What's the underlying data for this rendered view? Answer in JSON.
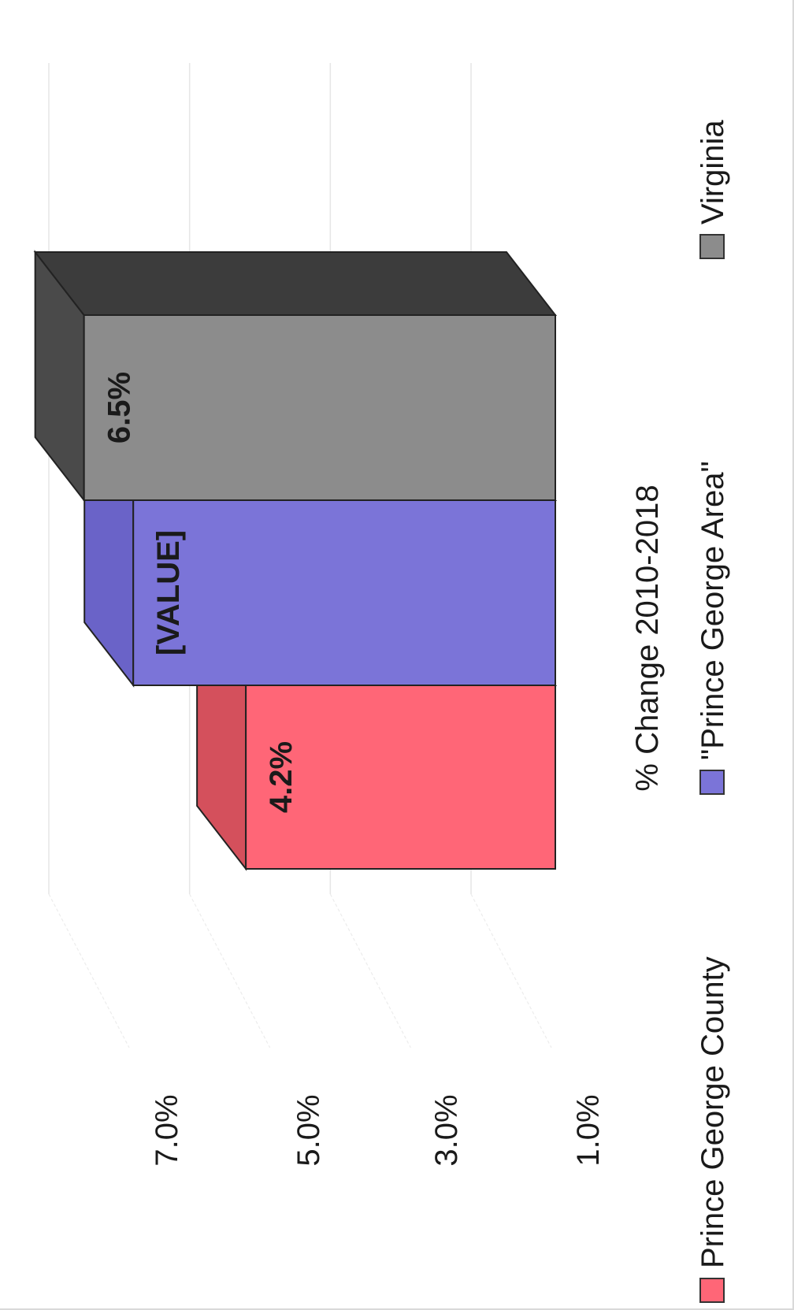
{
  "chart_data": {
    "type": "bar",
    "orientation": "rotated-90-clockwise",
    "style": "3d-column",
    "title": "% Change 2010-2018",
    "categories": [
      "% Change 2010-2018"
    ],
    "series": [
      {
        "name": "Prince George County",
        "values": [
          4.2
        ],
        "data_label": "4.2%",
        "color": "#ff6677",
        "side_color": "#b84048",
        "top_color": "#d4505c"
      },
      {
        "name": "\"Prince George Area\"",
        "values": [
          5.8
        ],
        "data_label": "[VALUE]",
        "color": "#7b74d8",
        "side_color": "#5a52b8",
        "top_color": "#6a63c8"
      },
      {
        "name": "Virginia",
        "values": [
          6.5
        ],
        "data_label": "6.5%",
        "color": "#8c8c8c",
        "side_color": "#3c3c3c",
        "top_color": "#4a4a4a"
      }
    ],
    "y_ticks": [
      "7.0%",
      "5.0%",
      "3.0%",
      "1.0%"
    ],
    "ylim": [
      1.0,
      7.0
    ],
    "grid": true,
    "legend_position": "bottom"
  }
}
